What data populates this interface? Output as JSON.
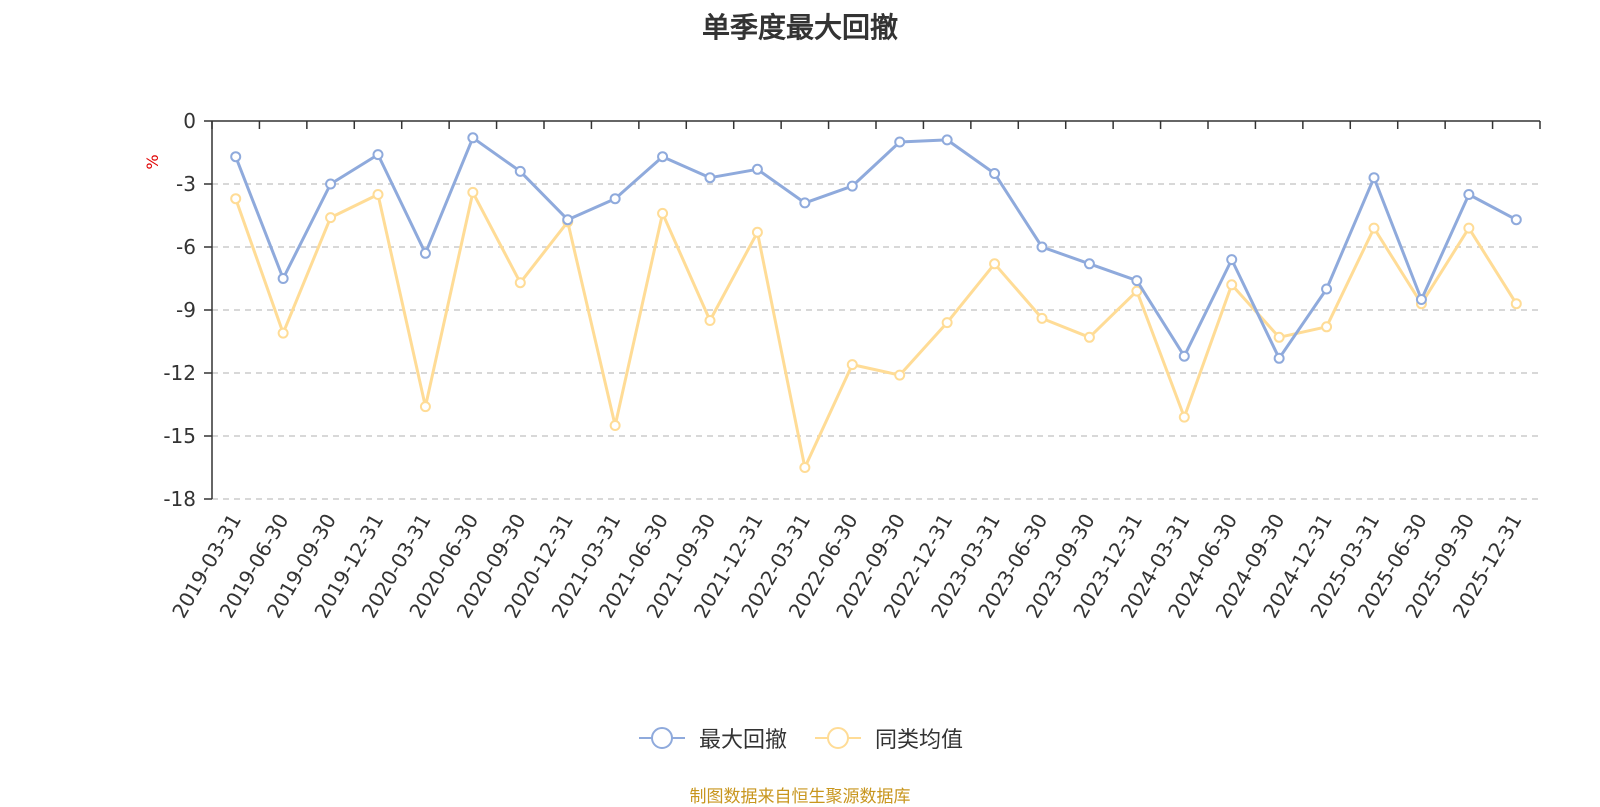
{
  "chart_data": {
    "type": "line",
    "title": "单季度最大回撤",
    "ylabel": "%",
    "ylim": [
      -18,
      0
    ],
    "yticks": [
      0,
      -3,
      -6,
      -9,
      -12,
      -15,
      -18
    ],
    "grid": true,
    "legend_position": "bottom-center",
    "categories": [
      "2019-03-31",
      "2019-06-30",
      "2019-09-30",
      "2019-12-31",
      "2020-03-31",
      "2020-06-30",
      "2020-09-30",
      "2020-12-31",
      "2021-03-31",
      "2021-06-30",
      "2021-09-30",
      "2021-12-31",
      "2022-03-31",
      "2022-06-30",
      "2022-09-30",
      "2022-12-31",
      "2023-03-31",
      "2023-06-30",
      "2023-09-30",
      "2023-12-31",
      "2024-03-31",
      "2024-06-30",
      "2024-09-30",
      "2024-12-31",
      "2025-03-31",
      "2025-06-30",
      "2025-09-30",
      "2025-12-31"
    ],
    "series": [
      {
        "name": "最大回撤",
        "color": "#8faadc",
        "values": [
          -1.7,
          -7.5,
          -3.0,
          -1.6,
          -6.3,
          -0.8,
          -2.4,
          -4.7,
          -3.7,
          -1.7,
          -2.7,
          -2.3,
          -3.9,
          -3.1,
          -1.0,
          -0.9,
          -2.5,
          -6.0,
          -6.8,
          -7.6,
          -11.2,
          -6.6,
          -11.3,
          -8.0,
          -2.7,
          -8.5,
          -3.5,
          -4.7
        ]
      },
      {
        "name": "同类均值",
        "color": "#ffdc96",
        "values": [
          -3.7,
          -10.1,
          -4.6,
          -3.5,
          -13.6,
          -3.4,
          -7.7,
          -4.8,
          -14.5,
          -4.4,
          -9.5,
          -5.3,
          -16.5,
          -11.6,
          -12.1,
          -9.6,
          -6.8,
          -9.4,
          -10.3,
          -8.1,
          -14.1,
          -7.8,
          -10.3,
          -9.8,
          -5.1,
          -8.7,
          -5.1,
          -8.7
        ]
      }
    ]
  },
  "footer": {
    "source": "制图数据来自恒生聚源数据库"
  },
  "colors": {
    "axis": "#333333",
    "grid": "#cccccc",
    "ylabel": "#e00000",
    "source": "#c8961e"
  }
}
